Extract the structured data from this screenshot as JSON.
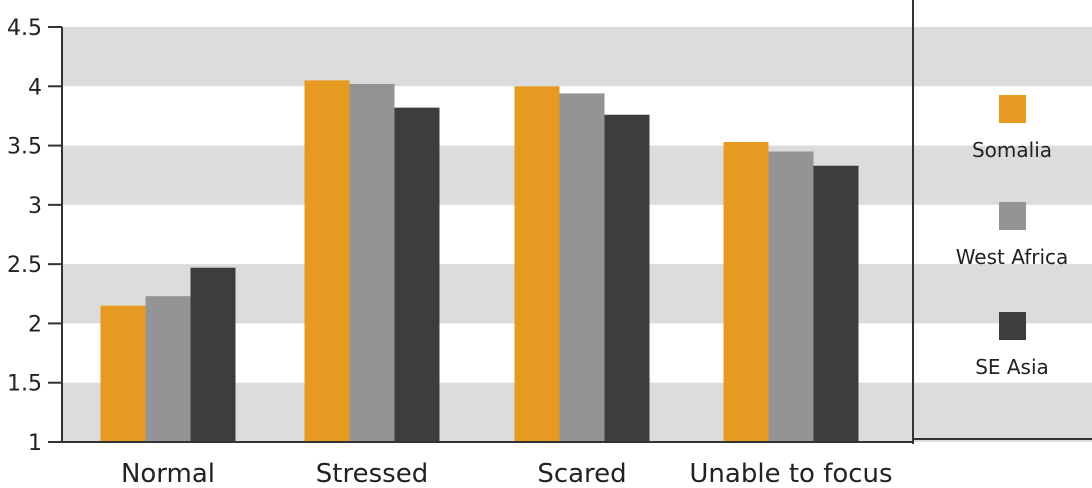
{
  "chart_data": {
    "type": "bar",
    "title": "",
    "xlabel": "",
    "ylabel": "",
    "categories": [
      "Normal",
      "Stressed",
      "Scared",
      "Unable to focus"
    ],
    "series": [
      {
        "name": "Somalia",
        "color": "#E79A22",
        "values": [
          2.15,
          4.05,
          4.0,
          3.53
        ]
      },
      {
        "name": "West Africa",
        "color": "#949497",
        "values": [
          2.23,
          4.02,
          3.94,
          3.45
        ]
      },
      {
        "name": "SE Asia",
        "color": "#3D3D3E",
        "values": [
          2.47,
          3.82,
          3.76,
          3.33
        ]
      }
    ],
    "ylim": [
      1,
      4.5
    ],
    "yticks": [
      "1",
      "1.5",
      "2",
      "2.5",
      "3",
      "3.5",
      "4",
      "4.5"
    ],
    "grid": "alternating horizontal bands",
    "band_color": "#DCDCDD",
    "legend_position": "right"
  }
}
